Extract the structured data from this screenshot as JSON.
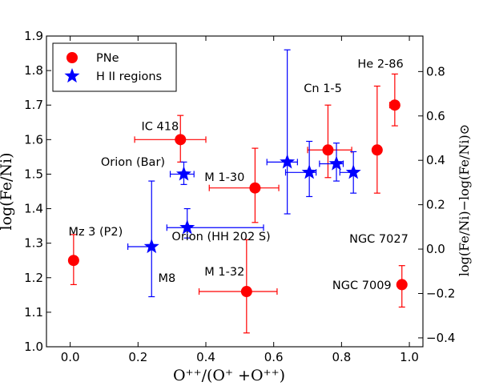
{
  "chart_data": {
    "type": "scatter",
    "xlabel": "O⁺⁺/(O⁺ +O⁺⁺)",
    "ylabel": "log(Fe/Ni)",
    "ylabel_right": "log(Fe/Ni)−log(Fe/Ni)⊙",
    "xlim": [
      -0.07,
      1.04
    ],
    "ylim": [
      1.0,
      1.9
    ],
    "ylim_right": [
      -0.44,
      0.96
    ],
    "x_ticks": [
      "0.0",
      "0.2",
      "0.4",
      "0.6",
      "0.8",
      "1.0"
    ],
    "y_ticks": [
      "1.0",
      "1.1",
      "1.2",
      "1.3",
      "1.4",
      "1.5",
      "1.6",
      "1.7",
      "1.8",
      "1.9"
    ],
    "y_right_ticks": [
      "−0.4",
      "−0.2",
      "0.0",
      "0.2",
      "0.4",
      "0.6",
      "0.8"
    ],
    "grid": false,
    "legend_position": "top-left",
    "legend": [
      {
        "label": "PNe",
        "marker": "circle",
        "color": "#ff0000"
      },
      {
        "label": "H II regions",
        "marker": "star",
        "color": "#0000ff"
      }
    ],
    "series": [
      {
        "name": "PNe",
        "color": "#ff0000",
        "points": [
          {
            "label": "Mz 3 (P2)",
            "x": 0.01,
            "y": 1.25,
            "xerr": [
              0,
              0
            ],
            "yerr": [
              0.07,
              0.075
            ]
          },
          {
            "label": "IC 418",
            "x": 0.325,
            "y": 1.6,
            "xerr": [
              0.135,
              0.075
            ],
            "yerr": [
              0.065,
              0.07
            ]
          },
          {
            "label": "M 1-30",
            "x": 0.545,
            "y": 1.46,
            "xerr": [
              0.135,
              0.07
            ],
            "yerr": [
              0.1,
              0.115
            ]
          },
          {
            "label": "M 1-32",
            "x": 0.52,
            "y": 1.16,
            "xerr": [
              0.14,
              0.09
            ],
            "yerr": [
              0.12,
              0.15
            ]
          },
          {
            "label": "Cn 1-5",
            "x": 0.76,
            "y": 1.57,
            "xerr": [
              0.06,
              0.07
            ],
            "yerr": [
              0.08,
              0.13
            ]
          },
          {
            "label": "NGC 7027",
            "x": 0.905,
            "y": 1.57,
            "xerr": [
              0,
              0
            ],
            "yerr": [
              0.125,
              0.185
            ]
          },
          {
            "label": "He 2-86",
            "x": 0.957,
            "y": 1.7,
            "xerr": [
              0.015,
              0.01
            ],
            "yerr": [
              0.06,
              0.09
            ]
          },
          {
            "label": "NGC 7009",
            "x": 0.978,
            "y": 1.18,
            "xerr": [
              0,
              0
            ],
            "yerr": [
              0.065,
              0.055
            ]
          }
        ]
      },
      {
        "name": "H II regions",
        "color": "#0000ff",
        "points": [
          {
            "label": "Orion (Bar)",
            "x": 0.335,
            "y": 1.5,
            "xerr": [
              0.04,
              0.03
            ],
            "yerr": [
              0.03,
              0.035
            ]
          },
          {
            "label": "Orion (HH 202 S)",
            "x": 0.345,
            "y": 1.345,
            "xerr": [
              0.06,
              0.225
            ],
            "yerr": [
              0.03,
              0.055
            ]
          },
          {
            "label": "M8",
            "x": 0.24,
            "y": 1.29,
            "xerr": [
              0.07,
              0.0
            ],
            "yerr": [
              0.145,
              0.19
            ]
          },
          {
            "label": "",
            "x": 0.64,
            "y": 1.535,
            "xerr": [
              0.06,
              0.03
            ],
            "yerr": [
              0.15,
              0.325
            ]
          },
          {
            "label": "",
            "x": 0.705,
            "y": 1.505,
            "xerr": [
              0.07,
              0.02
            ],
            "yerr": [
              0.07,
              0.09
            ]
          },
          {
            "label": "",
            "x": 0.785,
            "y": 1.53,
            "xerr": [
              0.05,
              0.02
            ],
            "yerr": [
              0.05,
              0.06
            ]
          },
          {
            "label": "",
            "x": 0.835,
            "y": 1.505,
            "xerr": [
              0.04,
              0.0
            ],
            "yerr": [
              0.06,
              0.06
            ]
          }
        ]
      }
    ],
    "annotations": [
      {
        "text": "Mz 3 (P2)",
        "x": 0.075,
        "y": 1.323
      },
      {
        "text": "IC 418",
        "x": 0.265,
        "y": 1.627
      },
      {
        "text": "Orion (Bar)",
        "x": 0.185,
        "y": 1.524
      },
      {
        "text": "M 1-30",
        "x": 0.455,
        "y": 1.48
      },
      {
        "text": "Orion (HH 202 S)",
        "x": 0.445,
        "y": 1.308
      },
      {
        "text": "M8",
        "x": 0.285,
        "y": 1.188
      },
      {
        "text": "M 1-32",
        "x": 0.455,
        "y": 1.206
      },
      {
        "text": "Cn 1-5",
        "x": 0.745,
        "y": 1.738
      },
      {
        "text": "He 2-86",
        "x": 0.915,
        "y": 1.808
      },
      {
        "text": "NGC 7027",
        "x": 0.91,
        "y": 1.302
      },
      {
        "text": "NGC 7009",
        "x": 0.86,
        "y": 1.167
      }
    ]
  }
}
